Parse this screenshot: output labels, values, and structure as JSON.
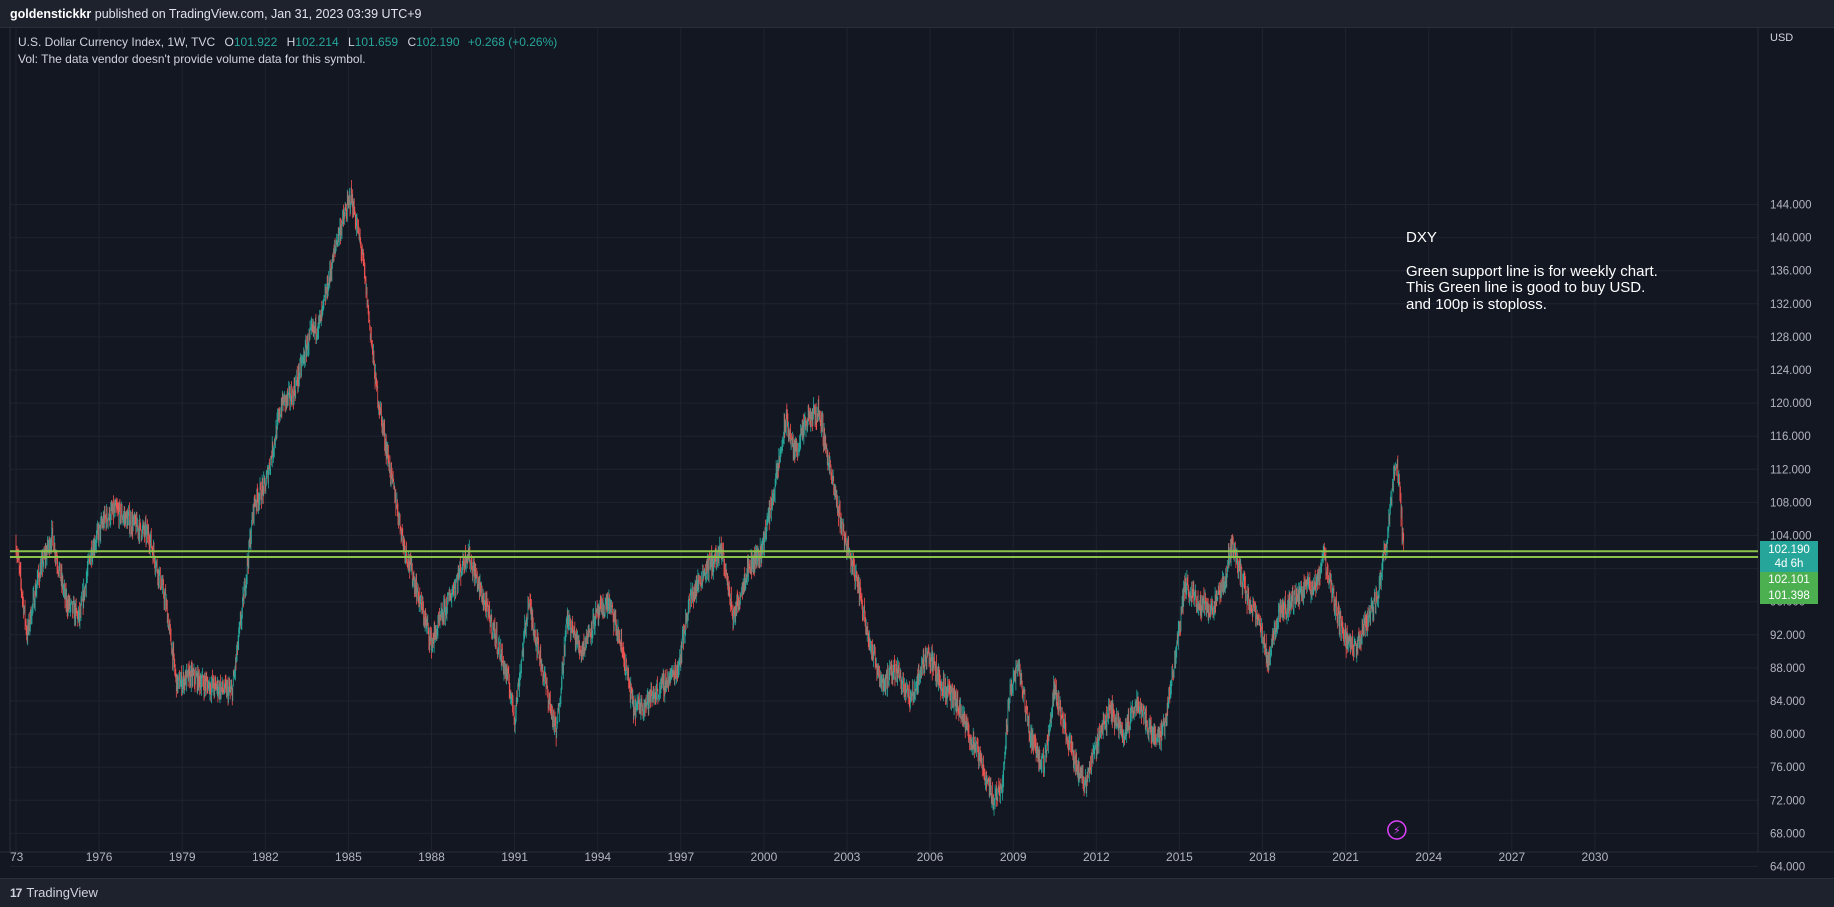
{
  "header": {
    "author": "goldenstickkr",
    "published_text": "published on TradingView.com, Jan 31, 2023 03:39 UTC+9"
  },
  "legend": {
    "symbol_line": "U.S. Dollar Currency Index, 1W, TVC",
    "open_label": "O",
    "open": "101.922",
    "high_label": "H",
    "high": "102.214",
    "low_label": "L",
    "low": "101.659",
    "close_label": "C",
    "close": "102.190",
    "change": "+0.268 (+0.26%)",
    "vol_note": "Vol: The data vendor doesn't provide volume data for this symbol."
  },
  "note": {
    "title": "DXY",
    "line1": "Green support line is for weekly chart.",
    "line2": "This Green line is good to buy USD.",
    "line3": "and 100p is stoploss."
  },
  "price_tags": {
    "last_price": "102.190",
    "countdown": "4d 6h",
    "line_upper": "102.101",
    "line_lower": "101.398"
  },
  "footer": {
    "brand": "TradingView"
  },
  "colors": {
    "background": "#131722",
    "up": "#26a69a",
    "down": "#ef5350",
    "support_line": "#8bc34a",
    "last_price_bg": "#26a69a",
    "support_tag_bg": "#4caf50",
    "grid": "#1f2330"
  },
  "chart_data": {
    "type": "candlestick",
    "symbol": "DXY",
    "interval": "1W",
    "currency": "USD",
    "x_axis_ticks": [
      "73",
      "1976",
      "1979",
      "1982",
      "1985",
      "1988",
      "1991",
      "1994",
      "1997",
      "2000",
      "2003",
      "2006",
      "2009",
      "2012",
      "2015",
      "2018",
      "2021",
      "2024",
      "2027",
      "2030"
    ],
    "x_range": [
      1973.0,
      2033.0
    ],
    "y_axis_ticks": [
      "64.000",
      "68.000",
      "72.000",
      "76.000",
      "80.000",
      "84.000",
      "88.000",
      "92.000",
      "96.000",
      "104.000",
      "108.000",
      "112.000",
      "116.000",
      "120.000",
      "124.000",
      "128.000",
      "132.000",
      "136.000",
      "140.000",
      "144.000"
    ],
    "y_range": [
      62.0,
      146.0
    ],
    "horizontal_lines": [
      {
        "value": 102.101,
        "color": "#8bc34a"
      },
      {
        "value": 101.398,
        "color": "#8bc34a"
      }
    ],
    "price_path": [
      [
        1973.0,
        103.0
      ],
      [
        1973.4,
        92.0
      ],
      [
        1973.8,
        99.0
      ],
      [
        1974.3,
        104.0
      ],
      [
        1974.8,
        96.0
      ],
      [
        1975.3,
        94.0
      ],
      [
        1975.7,
        102.0
      ],
      [
        1976.2,
        106.0
      ],
      [
        1976.6,
        107.0
      ],
      [
        1977.2,
        105.5
      ],
      [
        1977.8,
        104.0
      ],
      [
        1978.4,
        96.0
      ],
      [
        1978.8,
        86.0
      ],
      [
        1979.3,
        87.0
      ],
      [
        1979.9,
        86.0
      ],
      [
        1980.4,
        85.5
      ],
      [
        1980.8,
        85.0
      ],
      [
        1981.2,
        96.0
      ],
      [
        1981.6,
        108.0
      ],
      [
        1982.0,
        110.0
      ],
      [
        1982.6,
        120.0
      ],
      [
        1983.0,
        121.0
      ],
      [
        1983.6,
        128.0
      ],
      [
        1984.0,
        130.0
      ],
      [
        1984.6,
        140.0
      ],
      [
        1985.1,
        145.0
      ],
      [
        1985.5,
        138.0
      ],
      [
        1986.0,
        122.0
      ],
      [
        1986.5,
        112.0
      ],
      [
        1987.0,
        103.0
      ],
      [
        1987.5,
        97.0
      ],
      [
        1988.0,
        91.0
      ],
      [
        1988.6,
        96.0
      ],
      [
        1989.3,
        102.0
      ],
      [
        1989.8,
        97.0
      ],
      [
        1990.3,
        92.0
      ],
      [
        1990.8,
        86.0
      ],
      [
        1991.0,
        82.0
      ],
      [
        1991.5,
        96.0
      ],
      [
        1992.0,
        88.0
      ],
      [
        1992.5,
        80.0
      ],
      [
        1992.9,
        94.0
      ],
      [
        1993.4,
        90.0
      ],
      [
        1993.9,
        94.0
      ],
      [
        1994.4,
        96.0
      ],
      [
        1994.9,
        90.0
      ],
      [
        1995.3,
        83.0
      ],
      [
        1995.8,
        84.0
      ],
      [
        1996.4,
        86.0
      ],
      [
        1996.9,
        88.0
      ],
      [
        1997.3,
        96.0
      ],
      [
        1997.9,
        100.0
      ],
      [
        1998.5,
        102.0
      ],
      [
        1998.9,
        94.0
      ],
      [
        1999.4,
        100.0
      ],
      [
        1999.9,
        102.0
      ],
      [
        2000.4,
        110.0
      ],
      [
        2000.8,
        118.0
      ],
      [
        2001.1,
        114.0
      ],
      [
        2001.6,
        118.0
      ],
      [
        2002.0,
        119.0
      ],
      [
        2002.5,
        110.0
      ],
      [
        2002.9,
        104.0
      ],
      [
        2003.4,
        98.0
      ],
      [
        2003.9,
        90.0
      ],
      [
        2004.3,
        86.0
      ],
      [
        2004.8,
        88.0
      ],
      [
        2005.3,
        84.0
      ],
      [
        2005.9,
        90.0
      ],
      [
        2006.4,
        86.0
      ],
      [
        2006.9,
        84.0
      ],
      [
        2007.4,
        80.0
      ],
      [
        2007.8,
        77.0
      ],
      [
        2008.3,
        72.0
      ],
      [
        2008.6,
        74.0
      ],
      [
        2008.9,
        86.0
      ],
      [
        2009.2,
        88.0
      ],
      [
        2009.6,
        80.0
      ],
      [
        2010.1,
        76.0
      ],
      [
        2010.5,
        86.0
      ],
      [
        2010.9,
        80.0
      ],
      [
        2011.3,
        76.0
      ],
      [
        2011.6,
        74.0
      ],
      [
        2012.1,
        80.0
      ],
      [
        2012.5,
        83.0
      ],
      [
        2013.0,
        80.0
      ],
      [
        2013.5,
        84.0
      ],
      [
        2014.0,
        80.0
      ],
      [
        2014.4,
        80.0
      ],
      [
        2014.8,
        88.0
      ],
      [
        2015.2,
        98.0
      ],
      [
        2015.7,
        96.0
      ],
      [
        2016.2,
        95.0
      ],
      [
        2016.6,
        98.0
      ],
      [
        2016.9,
        103.0
      ],
      [
        2017.4,
        97.0
      ],
      [
        2017.9,
        93.0
      ],
      [
        2018.2,
        89.0
      ],
      [
        2018.6,
        95.0
      ],
      [
        2019.1,
        96.0
      ],
      [
        2019.6,
        98.0
      ],
      [
        2020.0,
        98.0
      ],
      [
        2020.2,
        102.0
      ],
      [
        2020.5,
        97.0
      ],
      [
        2020.9,
        92.0
      ],
      [
        2021.3,
        90.0
      ],
      [
        2021.8,
        94.0
      ],
      [
        2022.1,
        96.0
      ],
      [
        2022.5,
        104.0
      ],
      [
        2022.8,
        113.0
      ],
      [
        2022.95,
        110.0
      ],
      [
        2023.05,
        104.0
      ],
      [
        2023.1,
        102.19
      ]
    ]
  }
}
